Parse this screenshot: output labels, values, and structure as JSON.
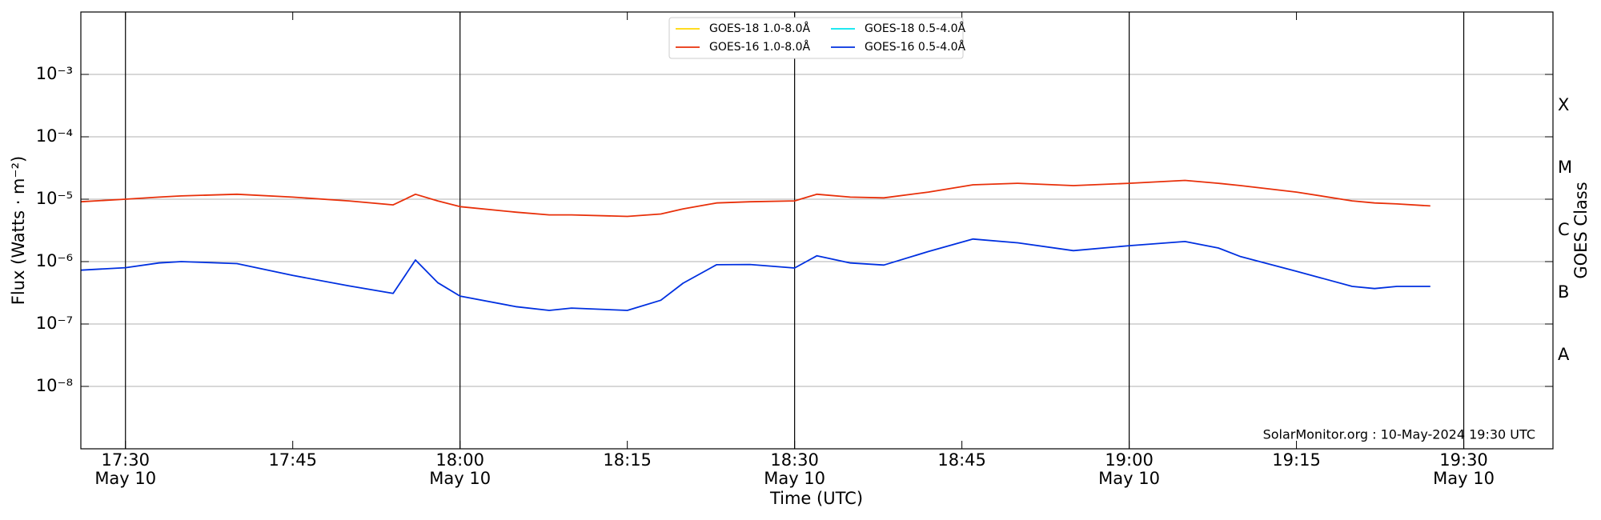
{
  "chart_data": {
    "type": "line",
    "xlabel": "Time (UTC)",
    "ylabel": "Flux (Watts · m⁻²)",
    "y2label": "GOES Class",
    "annotation": "SolarMonitor.org : 10-May-2024 19:30 UTC",
    "log_y": true,
    "grid": true,
    "legend": "top center",
    "x": [
      "17:26",
      "17:30",
      "17:33",
      "17:35",
      "17:40",
      "17:45",
      "17:50",
      "17:54",
      "17:56",
      "17:58",
      "18:00",
      "18:05",
      "18:08",
      "18:10",
      "18:15",
      "18:18",
      "18:20",
      "18:23",
      "18:26",
      "18:30",
      "18:32",
      "18:35",
      "18:38",
      "18:42",
      "18:46",
      "18:50",
      "18:55",
      "19:00",
      "19:05",
      "19:08",
      "19:10",
      "19:15",
      "19:20",
      "19:22",
      "19:24",
      "19:27"
    ],
    "xlim": [
      "17:26",
      "19:38"
    ],
    "xticks": [
      {
        "value": "17:30",
        "label": [
          "17:30",
          "May 10"
        ]
      },
      "17:45",
      {
        "value": "18:00",
        "label": [
          "18:00",
          "May 10"
        ]
      },
      "18:15",
      {
        "value": "18:30",
        "label": [
          "18:30",
          "May 10"
        ]
      },
      "18:45",
      {
        "value": "19:00",
        "label": [
          "19:00",
          "May 10"
        ]
      },
      "19:15",
      {
        "value": "19:30",
        "label": [
          "19:30",
          "May 10"
        ]
      }
    ],
    "ylim": [
      1e-09,
      0.01
    ],
    "yticks": [
      {
        "value": 1e-08,
        "label": "10⁻⁸"
      },
      {
        "value": 1e-07,
        "label": "10⁻⁷"
      },
      {
        "value": 1e-06,
        "label": "10⁻⁶"
      },
      {
        "value": 1e-05,
        "label": "10⁻⁵"
      },
      {
        "value": 0.0001,
        "label": "10⁻⁴"
      },
      {
        "value": 0.001,
        "label": "10⁻³"
      }
    ],
    "class_ticks": [
      {
        "value": 1e-08,
        "label": "A"
      },
      {
        "value": 1e-07,
        "label": "B"
      },
      {
        "value": 1e-06,
        "label": "C"
      },
      {
        "value": 1e-05,
        "label": "M"
      },
      {
        "value": 0.0001,
        "label": "X"
      }
    ],
    "series": [
      {
        "name": "GOES-18 1.0-8.0Å",
        "color": "#ffd700",
        "values": [
          null,
          null,
          null,
          null,
          null,
          null,
          null,
          null,
          null,
          null,
          null,
          null,
          null,
          null,
          null,
          null,
          null,
          null,
          null,
          null,
          null,
          null,
          null,
          null,
          null,
          null,
          null,
          null,
          null,
          null,
          null,
          null,
          null,
          null,
          null,
          null
        ]
      },
      {
        "name": "GOES-16 1.0-8.0Å",
        "color": "#e8300a",
        "values": [
          9.1e-06,
          1e-05,
          1.08e-05,
          1.13e-05,
          1.2e-05,
          1.08e-05,
          9.4e-06,
          8.1e-06,
          1.2e-05,
          9.4e-06,
          7.6e-06,
          6.2e-06,
          5.6e-06,
          5.6e-06,
          5.3e-06,
          5.8e-06,
          7e-06,
          8.7e-06,
          9.1e-06,
          9.4e-06,
          1.2e-05,
          1.08e-05,
          1.05e-05,
          1.3e-05,
          1.7e-05,
          1.8e-05,
          1.65e-05,
          1.8e-05,
          2e-05,
          1.8e-05,
          1.65e-05,
          1.3e-05,
          9.4e-06,
          8.7e-06,
          8.4e-06,
          7.8e-06
        ]
      },
      {
        "name": "GOES-18 0.5-4.0Å",
        "color": "#00e5ee",
        "values": [
          null,
          null,
          null,
          null,
          null,
          null,
          null,
          null,
          null,
          null,
          null,
          null,
          null,
          null,
          null,
          null,
          null,
          null,
          null,
          null,
          null,
          null,
          null,
          null,
          null,
          null,
          null,
          null,
          null,
          null,
          null,
          null,
          null,
          null,
          null,
          null
        ]
      },
      {
        "name": "GOES-16 0.5-4.0Å",
        "color": "#0030e0",
        "values": [
          7.3e-07,
          8e-07,
          9.5e-07,
          1e-06,
          9.3e-07,
          6e-07,
          4.1e-07,
          3.1e-07,
          1.06e-06,
          4.6e-07,
          2.8e-07,
          1.9e-07,
          1.65e-07,
          1.8e-07,
          1.65e-07,
          2.4e-07,
          4.5e-07,
          8.9e-07,
          9e-07,
          7.9e-07,
          1.24e-06,
          9.5e-07,
          8.8e-07,
          1.45e-06,
          2.3e-06,
          2e-06,
          1.5e-06,
          1.8e-06,
          2.1e-06,
          1.65e-06,
          1.2e-06,
          7e-07,
          4e-07,
          3.7e-07,
          4e-07,
          4e-07
        ]
      }
    ]
  }
}
